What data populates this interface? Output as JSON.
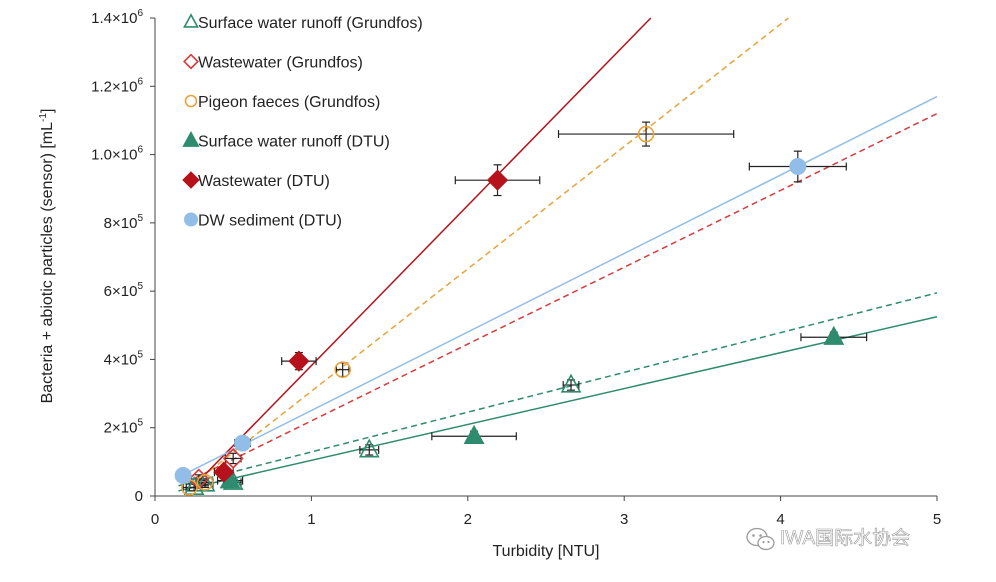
{
  "chart_data": {
    "type": "scatter",
    "xlabel": "Turbidity [NTU]",
    "ylabel": "Bacteria + abiotic particles (sensor) [mL",
    "ylabel_sup": "-1",
    "ylabel_close": "]",
    "xlim": [
      0,
      5
    ],
    "ylim": [
      0,
      1400000
    ],
    "x_ticks": [
      {
        "value": 0,
        "label": "0"
      },
      {
        "value": 1,
        "label": "1"
      },
      {
        "value": 2,
        "label": "2"
      },
      {
        "value": 3,
        "label": "3"
      },
      {
        "value": 4,
        "label": "4"
      },
      {
        "value": 5,
        "label": "5"
      }
    ],
    "y_ticks": [
      {
        "value": 0,
        "mant": "0",
        "exp": ""
      },
      {
        "value": 200000,
        "mant": "2×10",
        "exp": "5"
      },
      {
        "value": 400000,
        "mant": "4×10",
        "exp": "5"
      },
      {
        "value": 600000,
        "mant": "6×10",
        "exp": "5"
      },
      {
        "value": 800000,
        "mant": "8×10",
        "exp": "5"
      },
      {
        "value": 1000000,
        "mant": "1.0×10",
        "exp": "6"
      },
      {
        "value": 1200000,
        "mant": "1.2×10",
        "exp": "6"
      },
      {
        "value": 1400000,
        "mant": "1.4×10",
        "exp": "6"
      }
    ],
    "grid": false,
    "legend_position": "top-left",
    "series": [
      {
        "name": "Surface water runoff (Grundfos)",
        "marker": "triangle-open",
        "color": "#2e8b6e",
        "line_style": "dashed",
        "fit": {
          "x0": 0.15,
          "y0": 30000,
          "x1": 5.0,
          "y1": 595000
        },
        "points": [
          {
            "x": 0.25,
            "y": 25000,
            "xerr": 0.05,
            "yerr": 10000
          },
          {
            "x": 0.32,
            "y": 35000,
            "xerr": 0.05,
            "yerr": 10000
          },
          {
            "x": 0.5,
            "y": 40000,
            "xerr": 0.05,
            "yerr": 10000
          },
          {
            "x": 1.37,
            "y": 135000,
            "xerr": 0.06,
            "yerr": 15000
          },
          {
            "x": 2.66,
            "y": 325000,
            "xerr": 0.05,
            "yerr": 15000
          }
        ]
      },
      {
        "name": "Wastewater (Grundfos)",
        "marker": "diamond-open",
        "color": "#d63b3b",
        "line_style": "dashed",
        "fit": {
          "x0": 0.2,
          "y0": 40000,
          "x1": 5.0,
          "y1": 1120000
        },
        "points": [
          {
            "x": 0.28,
            "y": 50000,
            "xerr": 0.05,
            "yerr": 12000
          },
          {
            "x": 0.5,
            "y": 110000,
            "xerr": 0.05,
            "yerr": 15000
          }
        ]
      },
      {
        "name": "Pigeon faeces (Grundfos)",
        "marker": "circle-open",
        "color": "#e8a33a",
        "line_style": "dashed",
        "fit": {
          "x0": 0.2,
          "y0": 20000,
          "x1": 4.05,
          "y1": 1400000
        },
        "points": [
          {
            "x": 0.22,
            "y": 25000,
            "xerr": 0.04,
            "yerr": 10000
          },
          {
            "x": 0.32,
            "y": 40000,
            "xerr": 0.05,
            "yerr": 10000
          },
          {
            "x": 1.2,
            "y": 370000,
            "xerr": 0.04,
            "yerr": 20000
          },
          {
            "x": 3.14,
            "y": 1060000,
            "xerr": 0.56,
            "yerr": 35000
          }
        ]
      },
      {
        "name": "Surface water runoff (DTU)",
        "marker": "triangle-filled",
        "color": "#2e8b6e",
        "line_style": "solid",
        "fit": {
          "x0": 0.15,
          "y0": 15000,
          "x1": 5.0,
          "y1": 525000
        },
        "points": [
          {
            "x": 0.48,
            "y": 45000,
            "xerr": 0.08,
            "yerr": 10000
          },
          {
            "x": 2.04,
            "y": 175000,
            "xerr": 0.27,
            "yerr": 15000
          },
          {
            "x": 4.34,
            "y": 465000,
            "xerr": 0.21,
            "yerr": 15000
          }
        ]
      },
      {
        "name": "Wastewater (DTU)",
        "marker": "diamond-filled",
        "color": "#b5121b",
        "line_style": "solid",
        "fit": {
          "x0": 0.25,
          "y0": 30000,
          "x1": 3.17,
          "y1": 1400000
        },
        "points": [
          {
            "x": 0.44,
            "y": 70000,
            "xerr": 0.06,
            "yerr": 15000
          },
          {
            "x": 0.92,
            "y": 395000,
            "xerr": 0.11,
            "yerr": 25000
          },
          {
            "x": 2.19,
            "y": 925000,
            "xerr": 0.27,
            "yerr": 45000
          }
        ]
      },
      {
        "name": "DW sediment (DTU)",
        "marker": "circle-filled",
        "color": "#92bde6",
        "line_style": "solid",
        "fit": {
          "x0": 0.15,
          "y0": 55000,
          "x1": 5.0,
          "y1": 1170000
        },
        "points": [
          {
            "x": 0.18,
            "y": 60000,
            "xerr": 0.03,
            "yerr": 10000
          },
          {
            "x": 0.56,
            "y": 155000,
            "xerr": 0.05,
            "yerr": 15000
          },
          {
            "x": 4.11,
            "y": 965000,
            "xerr": 0.31,
            "yerr": 45000
          }
        ]
      }
    ]
  },
  "watermark": {
    "text": "IWA国际水协会",
    "icon": "wechat-icon"
  }
}
